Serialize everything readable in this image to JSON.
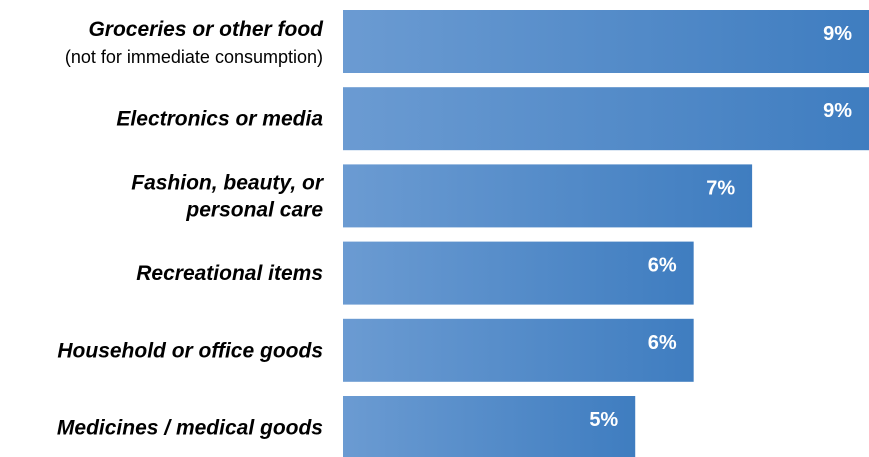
{
  "chart_data": {
    "type": "bar",
    "orientation": "horizontal",
    "categories": [
      "Groceries or other food",
      "Electronics or media",
      "Fashion, beauty, or personal care",
      "Recreational items",
      "Household or office goods",
      "Medicines / medical goods"
    ],
    "category_labels": [
      {
        "lines": [
          "Groceries or other food"
        ],
        "sub": "(not for immediate consumption)"
      },
      {
        "lines": [
          "Electronics or media"
        ],
        "sub": ""
      },
      {
        "lines": [
          "Fashion, beauty, or",
          "personal care"
        ],
        "sub": ""
      },
      {
        "lines": [
          "Recreational items"
        ],
        "sub": ""
      },
      {
        "lines": [
          "Household or office goods"
        ],
        "sub": ""
      },
      {
        "lines": [
          "Medicines / medical goods"
        ],
        "sub": ""
      }
    ],
    "values": [
      9,
      9,
      7,
      6,
      6,
      5
    ],
    "value_labels": [
      "9%",
      "9%",
      "7%",
      "6%",
      "6%",
      "5%"
    ],
    "unit": "%",
    "xlim": [
      0,
      9
    ],
    "grid": false,
    "colors": {
      "bar_start": "#6B9BD2",
      "bar_end": "#3F7DC0",
      "label_text": "#000000",
      "value_text": "#ffffff"
    }
  }
}
